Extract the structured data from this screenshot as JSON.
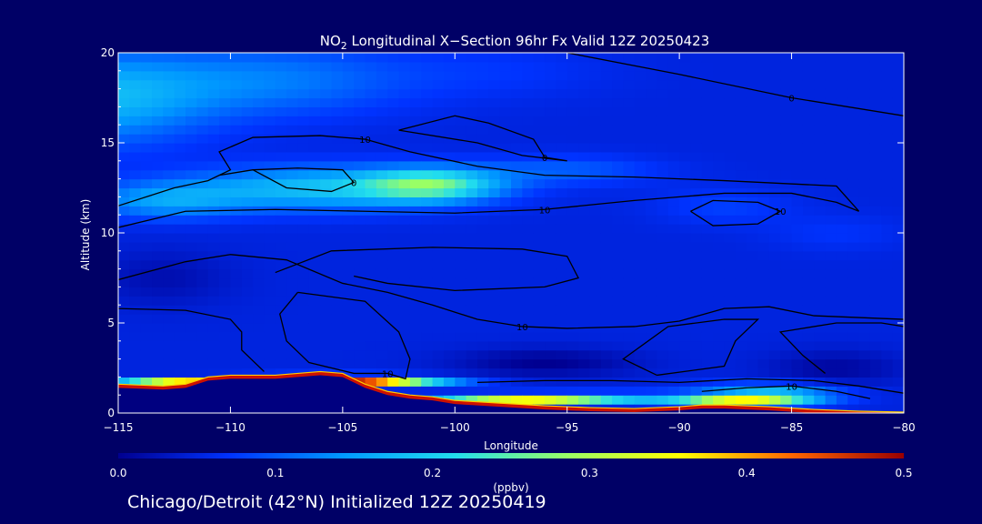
{
  "chart_data": {
    "type": "heatmap",
    "title_prefix": "NO",
    "title_sub": "2",
    "title_rest": " Longitudinal X−Section 96hr  Fx Valid 12Z 20250423",
    "xlabel": "Longitude",
    "ylabel": "Altitude (km)",
    "xlim": [
      -115,
      -80
    ],
    "ylim": [
      0,
      20
    ],
    "x_ticks": [
      -115,
      -110,
      -105,
      -100,
      -95,
      -90,
      -85,
      -80
    ],
    "x_tick_labels": [
      "−115",
      "−110",
      "−105",
      "−100",
      "−95",
      "−90",
      "−85",
      "−80"
    ],
    "y_ticks": [
      0,
      5,
      10,
      15,
      20
    ],
    "y_tick_labels": [
      "0",
      "5",
      "10",
      "15",
      "20"
    ],
    "colorbar": {
      "min": 0.0,
      "max": 0.5,
      "units": "(ppbv)",
      "ticks": [
        0.0,
        0.1,
        0.2,
        0.3,
        0.4,
        0.5
      ],
      "tick_labels": [
        "0.0",
        "0.1",
        "0.2",
        "0.3",
        "0.4",
        "0.5"
      ],
      "colors": [
        "#000090",
        "#0033ff",
        "#0099ff",
        "#22ddee",
        "#99ff66",
        "#ffff00",
        "#ff6600",
        "#990000"
      ]
    },
    "background_value": 0.05,
    "field_blobs": [
      {
        "lon": -116,
        "alt": 17.5,
        "value": 0.17,
        "sx": 5,
        "sy": 2.5
      },
      {
        "lon": -108,
        "alt": 18.5,
        "value": 0.12,
        "sx": 6,
        "sy": 2
      },
      {
        "lon": -98,
        "alt": 19,
        "value": 0.07,
        "sx": 5,
        "sy": 1.5
      },
      {
        "lon": -101,
        "alt": 12.7,
        "value": 0.22,
        "sx": 3,
        "sy": 0.9
      },
      {
        "lon": -106,
        "alt": 12.5,
        "value": 0.18,
        "sx": 6,
        "sy": 1.2
      },
      {
        "lon": -113,
        "alt": 11.8,
        "value": 0.14,
        "sx": 3.5,
        "sy": 1
      },
      {
        "lon": -95,
        "alt": 13.5,
        "value": 0.1,
        "sx": 4,
        "sy": 0.8
      },
      {
        "lon": -88,
        "alt": 11.5,
        "value": 0.08,
        "sx": 3,
        "sy": 1
      },
      {
        "lon": -83,
        "alt": 10,
        "value": 0.07,
        "sx": 3,
        "sy": 1
      },
      {
        "lon": -105,
        "alt": 1.8,
        "value": 0.5,
        "sx": 4,
        "sy": 0.25
      },
      {
        "lon": -112,
        "alt": 1.6,
        "value": 0.48,
        "sx": 3,
        "sy": 0.25
      },
      {
        "lon": -97,
        "alt": 0.8,
        "value": 0.35,
        "sx": 4,
        "sy": 0.25
      },
      {
        "lon": -87,
        "alt": 0.6,
        "value": 0.45,
        "sx": 3,
        "sy": 0.25
      },
      {
        "lon": -86,
        "alt": 1.3,
        "value": 0.18,
        "sx": 3,
        "sy": 0.4
      },
      {
        "lon": -92,
        "alt": 0.9,
        "value": 0.12,
        "sx": 4,
        "sy": 0.3
      },
      {
        "lon": -96,
        "alt": 2.8,
        "value": 0.0,
        "sx": 4,
        "sy": 0.8
      },
      {
        "lon": -83,
        "alt": 2.5,
        "value": 0.01,
        "sx": 3,
        "sy": 1
      },
      {
        "lon": -113,
        "alt": 7.5,
        "value": 0.02,
        "sx": 3,
        "sy": 1.5
      }
    ],
    "surface": [
      [
        -115,
        1.6
      ],
      [
        -113,
        1.5
      ],
      [
        -112,
        1.6
      ],
      [
        -111,
        2.0
      ],
      [
        -110,
        2.1
      ],
      [
        -108,
        2.1
      ],
      [
        -106,
        2.3
      ],
      [
        -105,
        2.2
      ],
      [
        -104,
        1.6
      ],
      [
        -103,
        1.2
      ],
      [
        -102,
        1.0
      ],
      [
        -101,
        0.9
      ],
      [
        -100,
        0.7
      ],
      [
        -98,
        0.55
      ],
      [
        -96,
        0.4
      ],
      [
        -94,
        0.3
      ],
      [
        -92,
        0.25
      ],
      [
        -90,
        0.35
      ],
      [
        -89,
        0.45
      ],
      [
        -88,
        0.45
      ],
      [
        -86,
        0.35
      ],
      [
        -84,
        0.2
      ],
      [
        -82,
        0.1
      ],
      [
        -80,
        0.05
      ]
    ],
    "contours": [
      {
        "label": "0",
        "points": [
          [
            -110.5,
            13.2
          ],
          [
            -109,
            13.5
          ],
          [
            -107.5,
            12.5
          ],
          [
            -105.5,
            12.3
          ],
          [
            -104.5,
            12.8
          ],
          [
            -105,
            13.5
          ],
          [
            -107,
            13.6
          ],
          [
            -109,
            13.5
          ],
          [
            -110.5,
            13.2
          ]
        ]
      },
      {
        "label": "0",
        "points": [
          [
            -102.5,
            15.7
          ],
          [
            -100,
            16.5
          ],
          [
            -98.5,
            16.1
          ],
          [
            -96.5,
            15.2
          ],
          [
            -96,
            14.2
          ],
          [
            -95,
            14.0
          ],
          [
            -97,
            14.3
          ],
          [
            -99,
            15.0
          ],
          [
            -102.5,
            15.7
          ]
        ]
      },
      {
        "label": "0",
        "points": [
          [
            -95,
            20
          ],
          [
            -90,
            18.8
          ],
          [
            -85,
            17.5
          ],
          [
            -80,
            16.5
          ]
        ]
      },
      {
        "label": "10",
        "points": [
          [
            -115,
            10.3
          ],
          [
            -112,
            11.2
          ],
          [
            -108,
            11.3
          ],
          [
            -104,
            11.2
          ],
          [
            -100,
            11.1
          ],
          [
            -96,
            11.3
          ],
          [
            -92,
            11.8
          ],
          [
            -88,
            12.2
          ],
          [
            -85,
            12.2
          ],
          [
            -83,
            11.7
          ],
          [
            -82,
            11.2
          ]
        ]
      },
      {
        "label": "10",
        "points": [
          [
            -115,
            11.5
          ],
          [
            -112.5,
            12.5
          ],
          [
            -111,
            12.9
          ],
          [
            -110,
            13.5
          ],
          [
            -110.5,
            14.5
          ],
          [
            -109,
            15.3
          ],
          [
            -106,
            15.4
          ],
          [
            -104,
            15.2
          ],
          [
            -102,
            14.5
          ],
          [
            -99,
            13.7
          ],
          [
            -96,
            13.2
          ],
          [
            -92,
            13.1
          ],
          [
            -88,
            12.9
          ],
          [
            -83,
            12.6
          ],
          [
            -82,
            11.2
          ]
        ]
      },
      {
        "label": "10",
        "points": [
          [
            -89.5,
            11.2
          ],
          [
            -88.5,
            11.8
          ],
          [
            -86.5,
            11.7
          ],
          [
            -85.5,
            11.2
          ],
          [
            -86.5,
            10.5
          ],
          [
            -88.5,
            10.4
          ],
          [
            -89.5,
            11.2
          ]
        ]
      },
      {
        "label": "",
        "points": [
          [
            -108,
            7.8
          ],
          [
            -105.5,
            9.0
          ],
          [
            -101,
            9.2
          ],
          [
            -97,
            9.1
          ],
          [
            -95,
            8.7
          ],
          [
            -94.5,
            7.5
          ],
          [
            -96,
            7.0
          ],
          [
            -100,
            6.8
          ],
          [
            -103,
            7.2
          ],
          [
            -104.5,
            7.6
          ]
        ]
      },
      {
        "label": "10",
        "points": [
          [
            -115,
            7.4
          ],
          [
            -112,
            8.4
          ],
          [
            -110,
            8.8
          ],
          [
            -107.5,
            8.5
          ],
          [
            -105,
            7.2
          ],
          [
            -103,
            6.7
          ],
          [
            -101,
            6.0
          ],
          [
            -99,
            5.2
          ],
          [
            -97,
            4.8
          ],
          [
            -95,
            4.7
          ],
          [
            -92,
            4.8
          ],
          [
            -90,
            5.1
          ],
          [
            -88,
            5.8
          ],
          [
            -86,
            5.9
          ],
          [
            -84,
            5.4
          ],
          [
            -82,
            5.3
          ],
          [
            -80,
            5.2
          ]
        ]
      },
      {
        "label": "",
        "points": [
          [
            -115,
            5.8
          ],
          [
            -112,
            5.7
          ],
          [
            -110,
            5.2
          ],
          [
            -109.5,
            4.5
          ],
          [
            -109.5,
            3.5
          ],
          [
            -108.5,
            2.3
          ]
        ]
      },
      {
        "label": "10",
        "points": [
          [
            -107,
            6.7
          ],
          [
            -104,
            6.2
          ],
          [
            -102.5,
            4.5
          ],
          [
            -102,
            3.0
          ],
          [
            -102.2,
            1.9
          ],
          [
            -103,
            2.2
          ],
          [
            -104.5,
            2.2
          ],
          [
            -106.5,
            2.8
          ],
          [
            -107.5,
            4.0
          ],
          [
            -107.8,
            5.5
          ],
          [
            -107,
            6.7
          ]
        ]
      },
      {
        "label": "",
        "points": [
          [
            -99,
            1.7
          ],
          [
            -96,
            1.8
          ],
          [
            -93,
            1.8
          ],
          [
            -90,
            1.7
          ],
          [
            -87,
            1.9
          ],
          [
            -84,
            1.8
          ],
          [
            -82,
            1.5
          ],
          [
            -80,
            1.1
          ]
        ]
      },
      {
        "label": "10",
        "points": [
          [
            -89,
            1.2
          ],
          [
            -87,
            1.4
          ],
          [
            -85,
            1.5
          ],
          [
            -83,
            1.2
          ],
          [
            -81.5,
            0.8
          ]
        ]
      },
      {
        "label": "",
        "points": [
          [
            -83.5,
            2.2
          ],
          [
            -84.5,
            3.2
          ],
          [
            -85.5,
            4.5
          ],
          [
            -83,
            5.0
          ],
          [
            -81,
            5.0
          ],
          [
            -80,
            4.8
          ]
        ]
      },
      {
        "label": "",
        "points": [
          [
            -91,
            2.1
          ],
          [
            -92.5,
            3.0
          ],
          [
            -90.5,
            4.8
          ],
          [
            -88,
            5.2
          ],
          [
            -86.5,
            5.2
          ],
          [
            -87.5,
            4.0
          ],
          [
            -88,
            2.6
          ],
          [
            -91,
            2.1
          ]
        ]
      }
    ]
  },
  "footer_text": "Chicago/Detroit (42°N) Initialized 12Z 20250419"
}
